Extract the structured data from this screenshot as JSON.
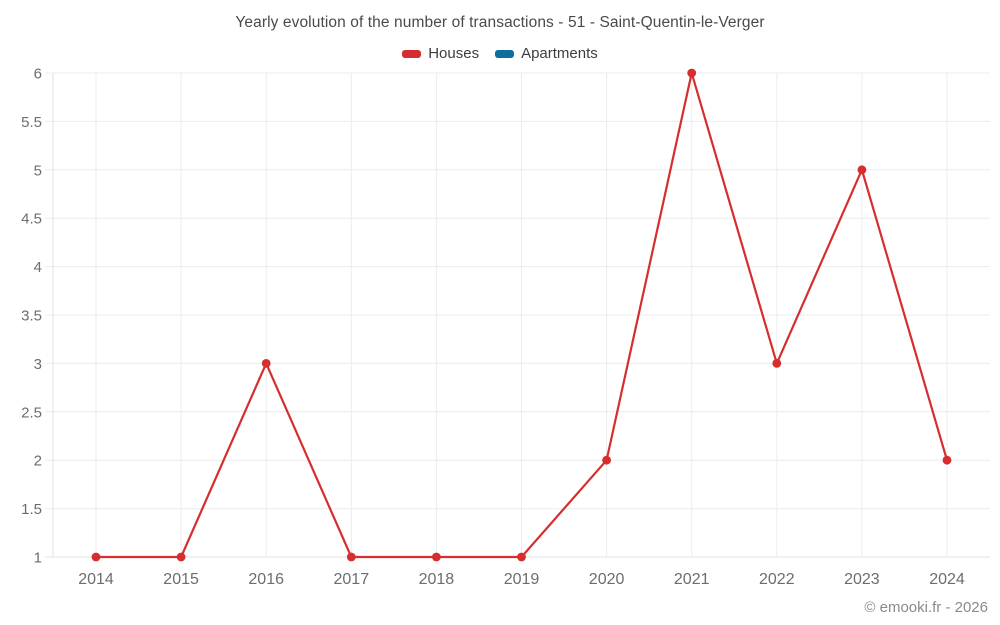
{
  "watermark": "© emooki.fr - 2026",
  "chart_data": {
    "type": "line",
    "title": "Yearly evolution of the number of transactions - 51 - Saint-Quentin-le-Verger",
    "categories": [
      "2014",
      "2015",
      "2016",
      "2017",
      "2018",
      "2019",
      "2020",
      "2021",
      "2022",
      "2023",
      "2024"
    ],
    "series": [
      {
        "name": "Houses",
        "color": "#d62e2e",
        "values": [
          1,
          1,
          3,
          1,
          1,
          1,
          2,
          6,
          3,
          5,
          2
        ]
      },
      {
        "name": "Apartments",
        "color": "#0e6f9e",
        "values": []
      }
    ],
    "xlabel": "",
    "ylabel": "",
    "ylim": [
      1,
      6
    ],
    "ytick_step": 0.5,
    "ytick_labels": [
      "1",
      "1.5",
      "2",
      "2.5",
      "3",
      "3.5",
      "4",
      "4.5",
      "5",
      "5.5",
      "6"
    ],
    "grid": true,
    "legend_position": "top",
    "grid_color": "#ececec",
    "axis_color": "#e0e0e0",
    "tick_color": "#6d6d6d"
  }
}
